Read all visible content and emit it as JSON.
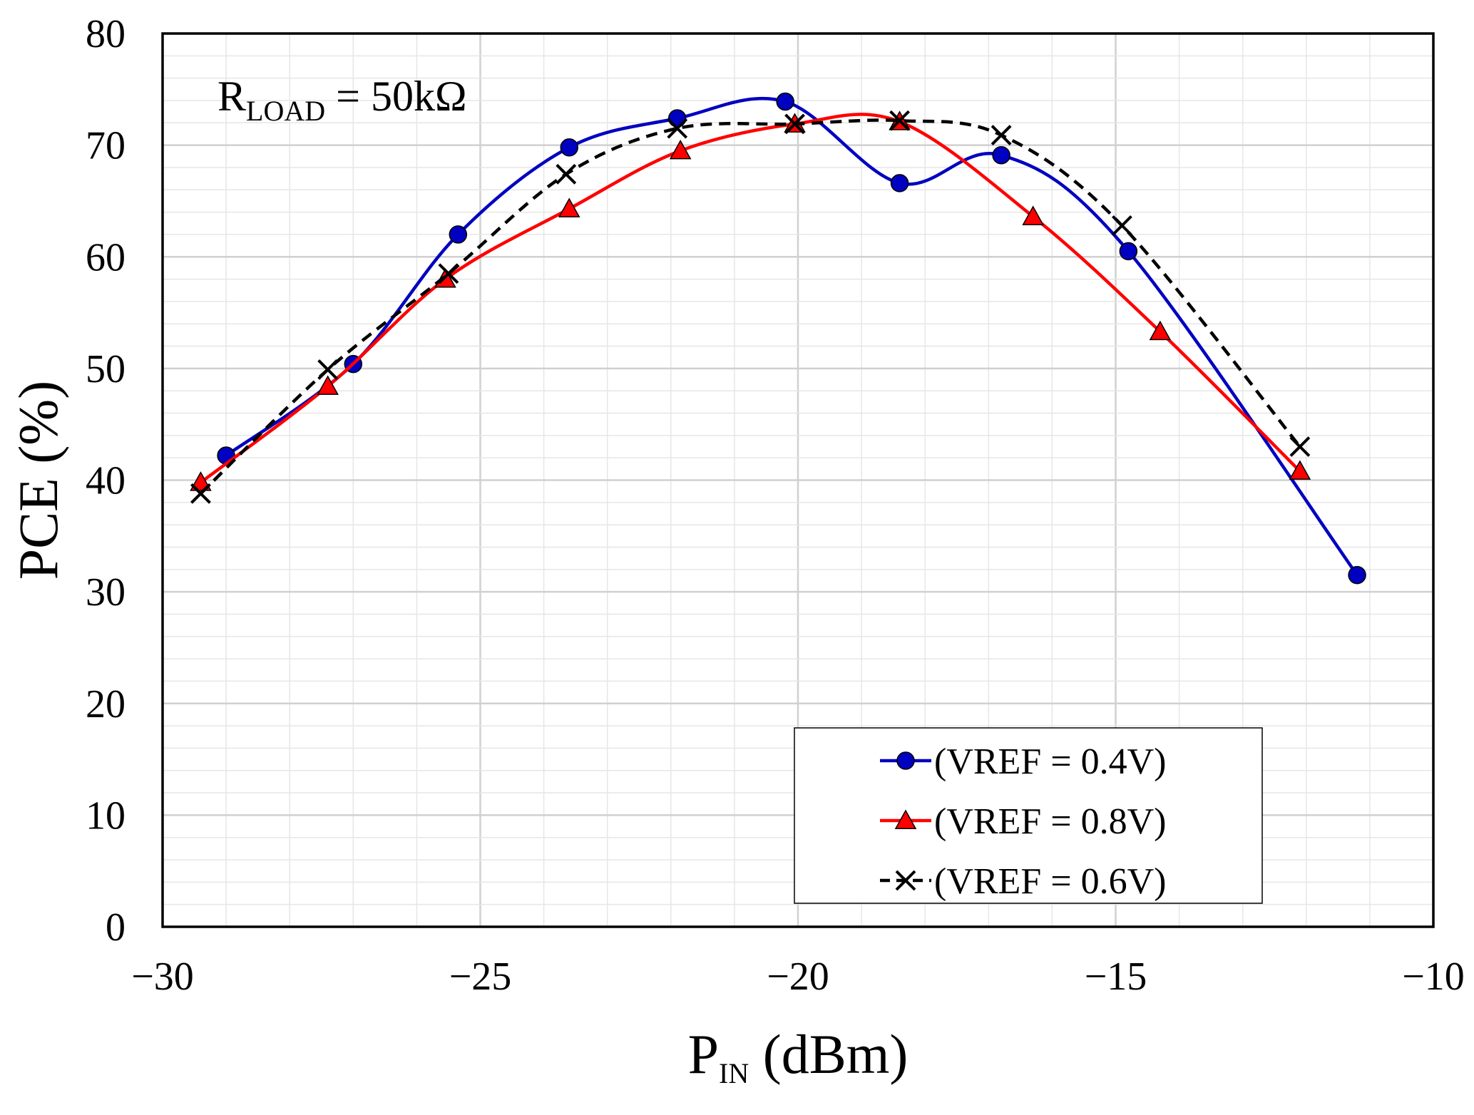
{
  "chart_data": {
    "type": "line",
    "title": "",
    "xlabel": {
      "main": "P",
      "sub": "IN",
      "rest": " (dBm)"
    },
    "ylabel": "PCE (%)",
    "xlim": [
      -30,
      -10
    ],
    "ylim": [
      0,
      80
    ],
    "x_ticks": [
      -30,
      -25,
      -20,
      -15,
      -10
    ],
    "x_tick_labels": [
      "−30",
      "−25",
      "−20",
      "−15",
      "−10"
    ],
    "y_ticks": [
      0,
      10,
      20,
      30,
      40,
      50,
      60,
      70,
      80
    ],
    "y_tick_labels": [
      "0",
      "10",
      "20",
      "30",
      "40",
      "50",
      "60",
      "70",
      "80"
    ],
    "x_minor_step": 1,
    "y_minor_step": 2,
    "grid": true,
    "annotation": {
      "main": "R",
      "sub": "LOAD",
      "rest": "  =  50kΩ"
    },
    "legend_position": "bottom-right",
    "series": [
      {
        "name": "(VREF = 0.4V)",
        "color": "#0000c0",
        "marker": "circle",
        "dash": "solid",
        "x": [
          -29.0,
          -27.0,
          -25.35,
          -23.6,
          -21.9,
          -20.2,
          -18.4,
          -16.8,
          -14.8,
          -11.2
        ],
        "y": [
          42.2,
          50.4,
          62.0,
          69.8,
          72.4,
          73.9,
          66.6,
          69.1,
          60.5,
          31.5
        ]
      },
      {
        "name": "(VREF = 0.8V)",
        "color": "#ff0000",
        "marker": "triangle",
        "dash": "solid",
        "x": [
          -29.4,
          -27.4,
          -25.55,
          -23.6,
          -21.85,
          -20.05,
          -18.4,
          -16.3,
          -14.3,
          -12.1
        ],
        "y": [
          39.8,
          48.4,
          58.0,
          64.3,
          69.5,
          71.9,
          72.1,
          63.6,
          53.3,
          40.8
        ]
      },
      {
        "name": "(VREF = 0.6V)",
        "color": "#000000",
        "marker": "x",
        "dash": "dashed",
        "x": [
          -29.4,
          -27.4,
          -25.5,
          -23.65,
          -21.9,
          -20.05,
          -18.4,
          -16.8,
          -14.9,
          -12.1
        ],
        "y": [
          38.8,
          49.9,
          58.5,
          67.4,
          71.5,
          71.9,
          72.2,
          70.9,
          62.8,
          43.0
        ]
      }
    ]
  }
}
